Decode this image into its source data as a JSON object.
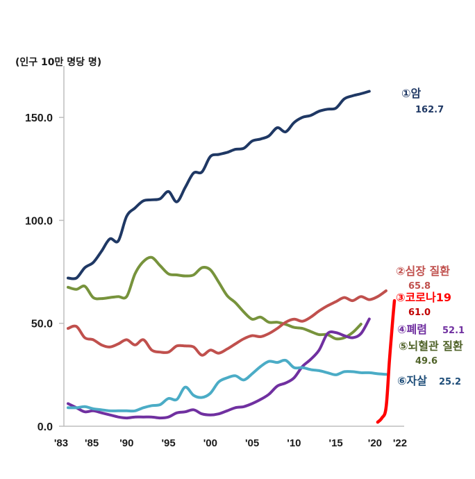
{
  "chart_data": {
    "type": "line",
    "unit_label": "(인구 10만 명당 명)",
    "ylim": [
      0,
      175
    ],
    "y_ticks": [
      "0.0",
      "50.0",
      "100.0",
      "150.0"
    ],
    "y_tick_values": [
      0,
      50,
      100,
      150
    ],
    "x_ticks": [
      "'83",
      "'85",
      "'90",
      "'95",
      "'00",
      "'05",
      "'10",
      "'15",
      "'20",
      "'22"
    ],
    "x_tick_years": [
      1983,
      1985,
      1990,
      1995,
      2000,
      2005,
      2010,
      2015,
      2020,
      2022
    ],
    "grid": false,
    "series": [
      {
        "name": "①암",
        "value_label": "162.7",
        "color": "#1f3864",
        "x": [
          1983,
          1984,
          1985,
          1986,
          1987,
          1988,
          1989,
          1990,
          1991,
          1992,
          1993,
          1994,
          1995,
          1996,
          1997,
          1998,
          1999,
          2000,
          2001,
          2002,
          2003,
          2004,
          2005,
          2006,
          2007,
          2008,
          2009,
          2010,
          2011,
          2012,
          2013,
          2014,
          2015,
          2016,
          2017,
          2018,
          2019,
          2020,
          2021,
          2022
        ],
        "y": [
          72,
          72,
          77,
          79.5,
          85,
          91,
          90,
          102,
          106,
          109.5,
          110,
          110.5,
          114,
          109,
          116,
          123,
          123.5,
          131,
          132,
          133,
          134.5,
          135,
          138.5,
          139.5,
          141,
          145,
          143,
          147.5,
          150,
          151,
          153,
          154,
          154.5,
          159,
          160.5,
          161.5,
          162.7,
          null,
          null,
          null
        ]
      },
      {
        "name": "②심장 질환",
        "value_label": "65.8",
        "color": "#c0504d",
        "x": [
          1983,
          1984,
          1985,
          1986,
          1987,
          1988,
          1989,
          1990,
          1991,
          1992,
          1993,
          1994,
          1995,
          1996,
          1997,
          1998,
          1999,
          2000,
          2001,
          2002,
          2003,
          2004,
          2005,
          2006,
          2007,
          2008,
          2009,
          2010,
          2011,
          2012,
          2013,
          2014,
          2015,
          2016,
          2017,
          2018,
          2019,
          2020,
          2021,
          2022
        ],
        "y": [
          47.5,
          48.5,
          43,
          42,
          39.5,
          38.5,
          40,
          42,
          39.5,
          42,
          37,
          36,
          36,
          39,
          39,
          38.5,
          34.5,
          37,
          35.5,
          37.5,
          40,
          42.5,
          44,
          43.5,
          45,
          47.5,
          50.5,
          52,
          51,
          53,
          56,
          58.5,
          60.5,
          62.5,
          61,
          63,
          61.5,
          63,
          65.8,
          null
        ]
      },
      {
        "name": "③코로나19",
        "value_label": "61.0",
        "color": "#ff0000",
        "x": [
          2020,
          2020.5,
          2021,
          2021.4,
          2021.8,
          2022
        ],
        "y": [
          2,
          4,
          9,
          32,
          52,
          61.0
        ]
      },
      {
        "name": "④폐렴",
        "value_label": "52.1",
        "color": "#7030a0",
        "x": [
          1983,
          1984,
          1985,
          1986,
          1987,
          1988,
          1989,
          1990,
          1991,
          1992,
          1993,
          1994,
          1995,
          1996,
          1997,
          1998,
          1999,
          2000,
          2001,
          2002,
          2003,
          2004,
          2005,
          2006,
          2007,
          2008,
          2009,
          2010,
          2011,
          2012,
          2013,
          2014,
          2015,
          2016,
          2017,
          2018,
          2019,
          2020,
          2021,
          2022
        ],
        "y": [
          11,
          9,
          7,
          7.5,
          6.5,
          5.5,
          4.5,
          4,
          4.5,
          4.5,
          4.5,
          4,
          4.5,
          6.5,
          7,
          8,
          6,
          5.5,
          6,
          7.5,
          9,
          9.5,
          11,
          13,
          15.5,
          19.5,
          21,
          23.5,
          29,
          32.5,
          37,
          45,
          45.5,
          44,
          43,
          45,
          52.1,
          null,
          null,
          null
        ]
      },
      {
        "name": "⑤뇌혈관 질환",
        "value_label": "49.6",
        "color": "#77933c",
        "x": [
          1983,
          1984,
          1985,
          1986,
          1987,
          1988,
          1989,
          1990,
          1991,
          1992,
          1993,
          1994,
          1995,
          1996,
          1997,
          1998,
          1999,
          2000,
          2001,
          2002,
          2003,
          2004,
          2005,
          2006,
          2007,
          2008,
          2009,
          2010,
          2011,
          2012,
          2013,
          2014,
          2015,
          2016,
          2017,
          2018,
          2019,
          2020,
          2021,
          2022
        ],
        "y": [
          67.5,
          66.5,
          68,
          62.5,
          62,
          62.5,
          63,
          63,
          74,
          80,
          82,
          78,
          74,
          73.5,
          73,
          73.5,
          77,
          76,
          70,
          63.5,
          60,
          55.5,
          52,
          53,
          50.5,
          50.5,
          49.5,
          48,
          47.5,
          46,
          44.5,
          44.5,
          42.5,
          43,
          45.5,
          49.6,
          null,
          null,
          null,
          null
        ]
      },
      {
        "name": "⑥자살",
        "value_label": "25.2",
        "color": "#4bacc6",
        "x": [
          1983,
          1984,
          1985,
          1986,
          1987,
          1988,
          1989,
          1990,
          1991,
          1992,
          1993,
          1994,
          1995,
          1996,
          1997,
          1998,
          1999,
          2000,
          2001,
          2002,
          2003,
          2004,
          2005,
          2006,
          2007,
          2008,
          2009,
          2010,
          2011,
          2012,
          2013,
          2014,
          2015,
          2016,
          2017,
          2018,
          2019,
          2020,
          2021,
          2022
        ],
        "y": [
          9,
          9,
          9.5,
          8.5,
          8,
          7.5,
          7.5,
          7.5,
          7.5,
          9,
          10,
          10.5,
          13.5,
          13,
          19,
          15,
          14,
          16,
          21.5,
          23.5,
          24.5,
          22.5,
          25.5,
          29,
          31.5,
          31,
          32,
          28.5,
          28.5,
          27.5,
          27,
          26,
          25,
          26.5,
          26.5,
          26,
          26,
          25.5,
          25.2,
          null
        ]
      }
    ]
  }
}
